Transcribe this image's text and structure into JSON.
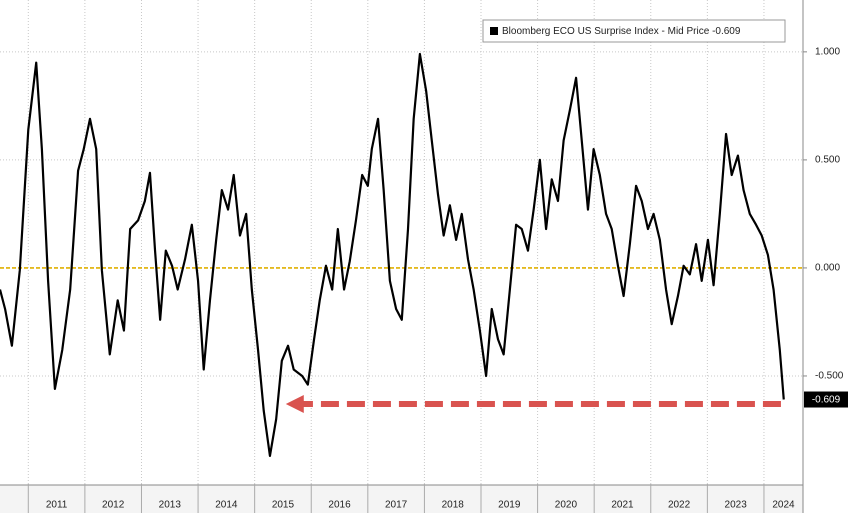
{
  "chart_data": {
    "type": "line",
    "x": [
      2010.5,
      2010.59,
      2010.71,
      2010.85,
      2011.0,
      2011.14,
      2011.24,
      2011.35,
      2011.47,
      2011.6,
      2011.74,
      2011.88,
      2011.98,
      2012.09,
      2012.2,
      2012.3,
      2012.44,
      2012.58,
      2012.69,
      2012.8,
      2012.94,
      2013.06,
      2013.15,
      2013.24,
      2013.33,
      2013.43,
      2013.54,
      2013.64,
      2013.77,
      2013.89,
      2014.0,
      2014.1,
      2014.21,
      2014.32,
      2014.42,
      2014.53,
      2014.63,
      2014.74,
      2014.85,
      2014.95,
      2015.06,
      2015.16,
      2015.27,
      2015.38,
      2015.48,
      2015.59,
      2015.69,
      2015.84,
      2015.94,
      2016.05,
      2016.15,
      2016.26,
      2016.37,
      2016.47,
      2016.58,
      2016.68,
      2016.79,
      2016.9,
      2017.0,
      2017.07,
      2017.18,
      2017.28,
      2017.39,
      2017.5,
      2017.6,
      2017.71,
      2017.81,
      2017.92,
      2018.03,
      2018.13,
      2018.24,
      2018.34,
      2018.45,
      2018.56,
      2018.66,
      2018.77,
      2018.87,
      2018.98,
      2019.09,
      2019.19,
      2019.3,
      2019.4,
      2019.51,
      2019.62,
      2019.72,
      2019.83,
      2019.93,
      2020.04,
      2020.15,
      2020.25,
      2020.36,
      2020.46,
      2020.57,
      2020.68,
      2020.78,
      2020.89,
      2020.99,
      2021.1,
      2021.21,
      2021.31,
      2021.42,
      2021.52,
      2021.63,
      2021.74,
      2021.84,
      2021.95,
      2022.05,
      2022.16,
      2022.27,
      2022.37,
      2022.48,
      2022.58,
      2022.69,
      2022.8,
      2022.9,
      2023.01,
      2023.11,
      2023.22,
      2023.33,
      2023.43,
      2023.54,
      2023.64,
      2023.75,
      2023.86,
      2023.96,
      2024.07,
      2024.17,
      2024.28,
      2024.35
    ],
    "series": [
      {
        "name": "Bloomberg ECO US Surprise Index - Mid Price -0.609",
        "color": "#000000",
        "values": [
          -0.1,
          -0.19,
          -0.36,
          -0.01,
          0.64,
          0.95,
          0.55,
          -0.06,
          -0.56,
          -0.38,
          -0.1,
          0.45,
          0.55,
          0.69,
          0.55,
          -0.01,
          -0.4,
          -0.15,
          -0.29,
          0.18,
          0.22,
          0.31,
          0.44,
          0.08,
          -0.24,
          0.08,
          0.01,
          -0.1,
          0.04,
          0.2,
          -0.06,
          -0.47,
          -0.15,
          0.13,
          0.36,
          0.27,
          0.43,
          0.15,
          0.25,
          -0.1,
          -0.38,
          -0.66,
          -0.87,
          -0.7,
          -0.43,
          -0.36,
          -0.47,
          -0.5,
          -0.54,
          -0.33,
          -0.15,
          0.01,
          -0.1,
          0.18,
          -0.1,
          0.03,
          0.22,
          0.43,
          0.38,
          0.55,
          0.69,
          0.36,
          -0.06,
          -0.19,
          -0.24,
          0.18,
          0.69,
          0.99,
          0.82,
          0.59,
          0.34,
          0.15,
          0.29,
          0.13,
          0.25,
          0.04,
          -0.1,
          -0.29,
          -0.5,
          -0.19,
          -0.33,
          -0.4,
          -0.1,
          0.2,
          0.18,
          0.08,
          0.27,
          0.5,
          0.18,
          0.41,
          0.31,
          0.59,
          0.73,
          0.88,
          0.59,
          0.27,
          0.55,
          0.43,
          0.25,
          0.18,
          0.01,
          -0.13,
          0.11,
          0.38,
          0.31,
          0.18,
          0.25,
          0.13,
          -0.1,
          -0.26,
          -0.13,
          0.01,
          -0.03,
          0.11,
          -0.06,
          0.13,
          -0.08,
          0.25,
          0.62,
          0.43,
          0.52,
          0.36,
          0.25,
          0.2,
          0.15,
          0.06,
          -0.1,
          -0.38,
          -0.609
        ]
      }
    ],
    "xlim": [
      2010.5,
      2024.69
    ],
    "xticks": [
      2011,
      2012,
      2013,
      2014,
      2015,
      2016,
      2017,
      2018,
      2019,
      2020,
      2021,
      2022,
      2023,
      2024
    ],
    "ylim": [
      -1.0,
      1.24
    ],
    "yticks": [
      {
        "value": 1,
        "label": "1.000"
      },
      {
        "value": 0.5,
        "label": "0.500"
      },
      {
        "value": 0,
        "label": "0.000"
      },
      {
        "value": -0.5,
        "label": "-0.500"
      }
    ],
    "grid": true,
    "reference_line": {
      "value": 0,
      "color": "#e0b000"
    },
    "annotation_arrow": {
      "x": [
        2024.3,
        2015.55
      ],
      "y": -0.63,
      "color": "#d9534f"
    }
  }
}
